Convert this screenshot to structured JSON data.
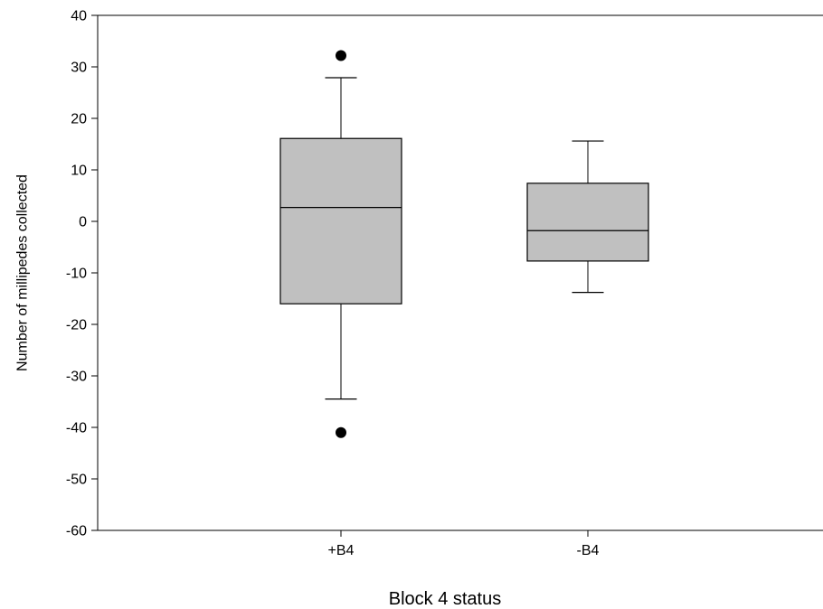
{
  "chart_data": {
    "type": "box",
    "title": "",
    "xlabel": "Block 4 status",
    "ylabel": "Number of millipedes collected",
    "ylim": [
      -60,
      40
    ],
    "yticks": [
      40,
      30,
      20,
      10,
      0,
      -10,
      -20,
      -30,
      -40,
      -50,
      -60
    ],
    "grid": false,
    "categories": [
      "+B4",
      "-B4"
    ],
    "series": [
      {
        "category": "+B4",
        "whisker_low": -34.5,
        "q1": -16,
        "median": 2.7,
        "q3": 16.1,
        "whisker_high": 27.9,
        "outliers": [
          32.2,
          -41
        ]
      },
      {
        "category": "-B4",
        "whisker_low": -13.8,
        "q1": -7.7,
        "median": -1.8,
        "q3": 7.4,
        "whisker_high": 15.6,
        "outliers": []
      }
    ],
    "colors": {
      "box_fill": "#c0c0c0",
      "stroke": "#000000",
      "outlier": "#000000"
    }
  }
}
